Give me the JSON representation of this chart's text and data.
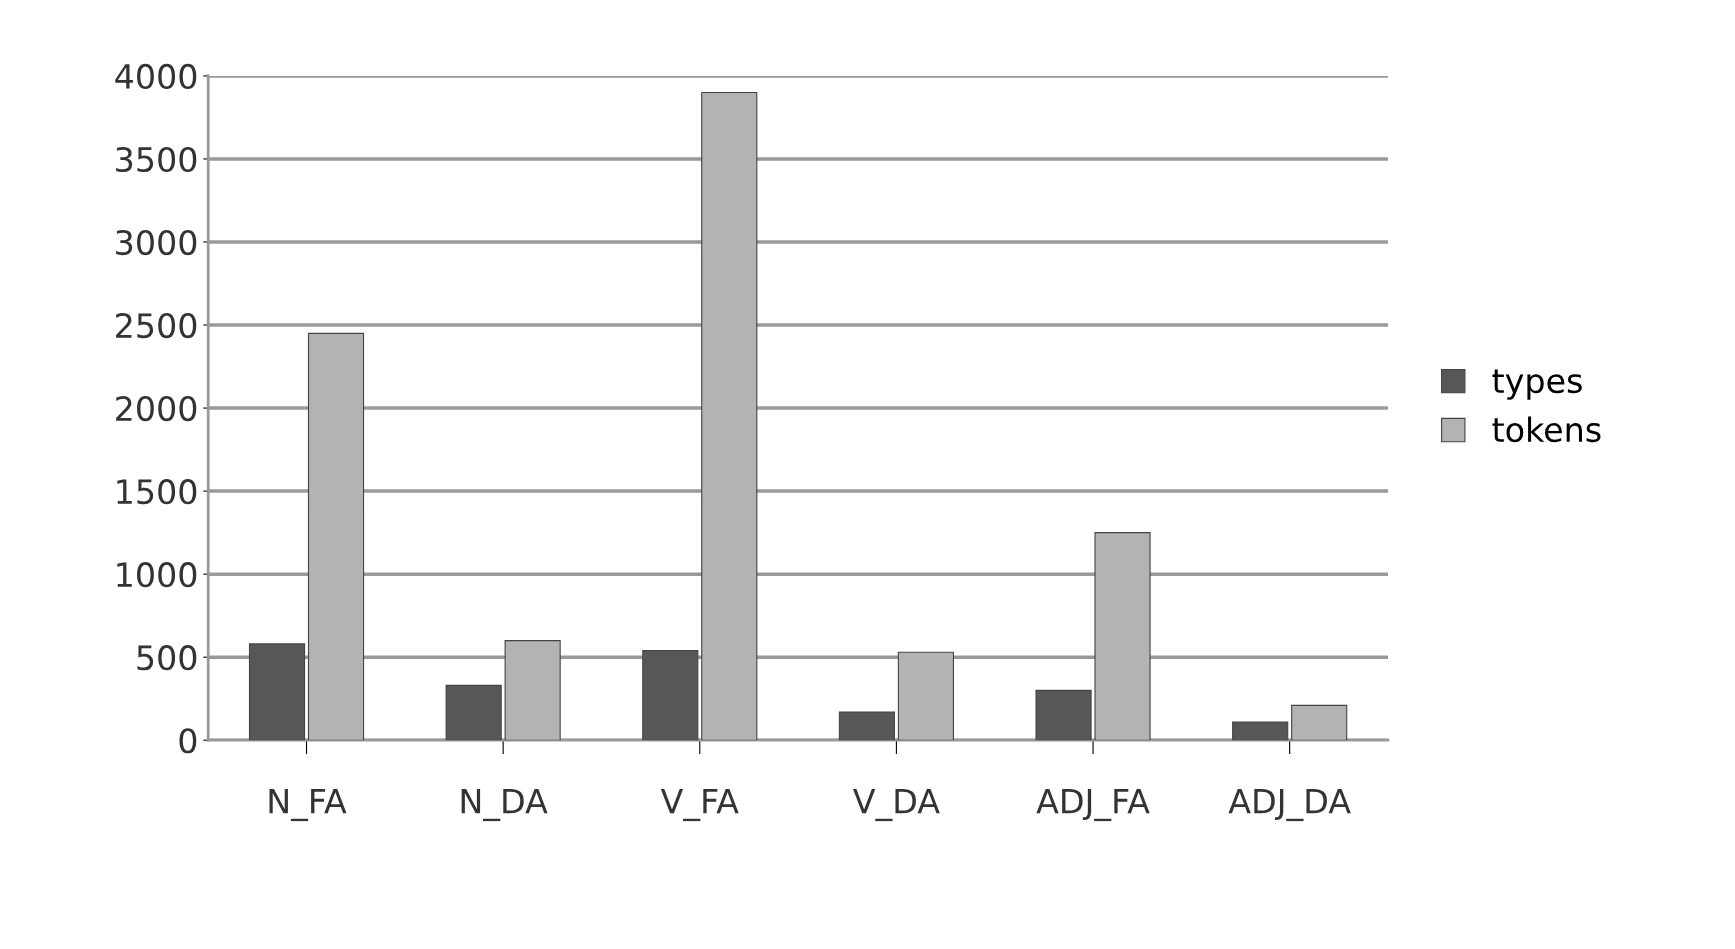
{
  "chart_data": {
    "type": "bar",
    "categories": [
      "N_FA",
      "N_DA",
      "V_FA",
      "V_DA",
      "ADJ_FA",
      "ADJ_DA"
    ],
    "series": [
      {
        "name": "types",
        "color": "#575757",
        "values": [
          580,
          330,
          540,
          170,
          300,
          110
        ]
      },
      {
        "name": "tokens",
        "color": "#b3b3b3",
        "values": [
          2450,
          600,
          3900,
          530,
          1250,
          210
        ]
      }
    ],
    "ylim": [
      0,
      4000
    ],
    "yticks": [
      0,
      500,
      1000,
      1500,
      2000,
      2500,
      3000,
      3500,
      4000
    ],
    "grid": "y",
    "legend": "right"
  }
}
